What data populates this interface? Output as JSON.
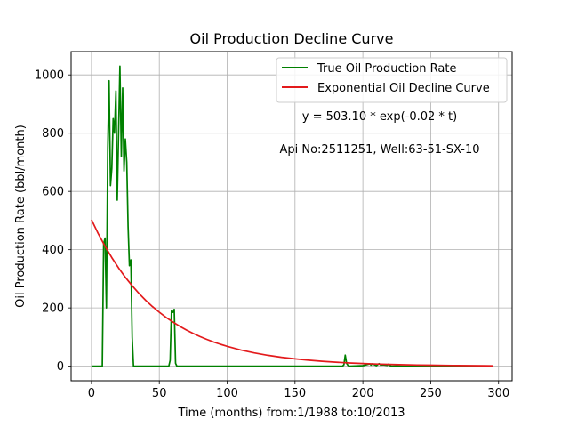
{
  "chart_data": {
    "type": "line",
    "title": "Oil Production Decline Curve",
    "xlabel": "Time (months) from:1/1988 to:10/2013",
    "ylabel": "Oil Production Rate (bbl/month)",
    "xlim": [
      -15,
      310
    ],
    "ylim": [
      -50,
      1080
    ],
    "xticks": [
      0,
      50,
      100,
      150,
      200,
      250,
      300
    ],
    "yticks": [
      0,
      200,
      400,
      600,
      800,
      1000
    ],
    "grid": true,
    "legend_position": "top-right",
    "annotations": [
      "y = 503.10 * exp(-0.02 * t)",
      "Api No:2511251, Well:63-51-SX-10"
    ],
    "series": [
      {
        "name": "True Oil Production Rate",
        "color": "#008000",
        "x": [
          0,
          8,
          9,
          10,
          11,
          12,
          13,
          14,
          15,
          16,
          17,
          18,
          19,
          20,
          21,
          22,
          23,
          24,
          25,
          26,
          27,
          28,
          29,
          30,
          31,
          32,
          33,
          34,
          35,
          36,
          37,
          40,
          50,
          57,
          58,
          59,
          60,
          61,
          62,
          63,
          64,
          100,
          150,
          185,
          186,
          187,
          188,
          189,
          190,
          200,
          205,
          206,
          207,
          210,
          212,
          213,
          215,
          218,
          219,
          220,
          221,
          225,
          230,
          240,
          250,
          260,
          270,
          280,
          290,
          296
        ],
        "y": [
          0,
          0,
          420,
          440,
          200,
          750,
          980,
          620,
          680,
          850,
          800,
          945,
          570,
          800,
          1030,
          720,
          955,
          670,
          780,
          700,
          480,
          345,
          365,
          100,
          0,
          0,
          0,
          0,
          0,
          0,
          0,
          0,
          0,
          0,
          20,
          190,
          185,
          195,
          10,
          0,
          0,
          0,
          0,
          0,
          5,
          38,
          10,
          3,
          0,
          2,
          8,
          4,
          8,
          2,
          9,
          4,
          5,
          3,
          7,
          2,
          0,
          1,
          0,
          0,
          0,
          0,
          0,
          0,
          0,
          0
        ]
      },
      {
        "name": "Exponential Oil Decline Curve",
        "color": "#e31a1c",
        "function": "503.10 * exp(-0.02 * t)",
        "x": [
          0,
          5,
          10,
          15,
          20,
          25,
          30,
          35,
          40,
          45,
          50,
          55,
          60,
          65,
          70,
          75,
          80,
          85,
          90,
          95,
          100,
          110,
          120,
          130,
          140,
          150,
          160,
          170,
          180,
          190,
          200,
          210,
          220,
          230,
          240,
          250,
          260,
          270,
          280,
          290,
          296
        ],
        "y": [
          503.1,
          455.2,
          411.9,
          372.7,
          337.2,
          305.1,
          276.1,
          249.8,
          226.1,
          204.5,
          185.1,
          167.5,
          151.5,
          137.1,
          124.1,
          112.3,
          101.6,
          91.9,
          83.2,
          75.2,
          68.1,
          55.7,
          45.7,
          37.4,
          30.6,
          25.0,
          20.5,
          16.8,
          13.8,
          11.2,
          9.2,
          7.5,
          6.2,
          5.1,
          4.1,
          3.4,
          2.8,
          2.3,
          1.9,
          1.5,
          1.4
        ]
      }
    ]
  }
}
